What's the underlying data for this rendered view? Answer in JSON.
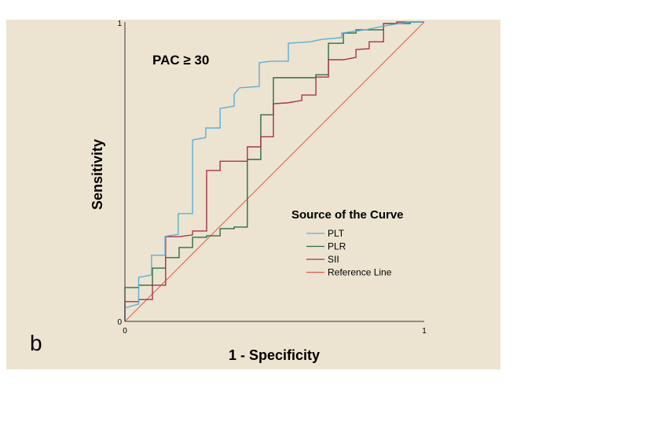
{
  "chart_data": {
    "type": "line",
    "title": "PAC  ≥ 30",
    "panel_label": "b",
    "xlabel": "1 - Specificity",
    "ylabel": "Sensitivity",
    "xlim": [
      0,
      1
    ],
    "ylim": [
      0,
      1
    ],
    "x_ticks": [
      "0",
      "1"
    ],
    "y_ticks": [
      "0",
      "1"
    ],
    "legend": {
      "title": "Source of the Curve",
      "placement": "center-right"
    },
    "series": [
      {
        "name": "PLT",
        "color": "#5BAFD8",
        "points": [
          [
            0,
            0
          ],
          [
            0,
            0.045
          ],
          [
            0.046,
            0.058
          ],
          [
            0.046,
            0.147
          ],
          [
            0.089,
            0.155
          ],
          [
            0.089,
            0.221
          ],
          [
            0.134,
            0.221
          ],
          [
            0.134,
            0.284
          ],
          [
            0.178,
            0.291
          ],
          [
            0.178,
            0.36
          ],
          [
            0.226,
            0.36
          ],
          [
            0.226,
            0.606
          ],
          [
            0.27,
            0.614
          ],
          [
            0.27,
            0.646
          ],
          [
            0.318,
            0.646
          ],
          [
            0.318,
            0.711
          ],
          [
            0.365,
            0.719
          ],
          [
            0.365,
            0.759
          ],
          [
            0.383,
            0.78
          ],
          [
            0.449,
            0.785
          ],
          [
            0.449,
            0.864
          ],
          [
            0.488,
            0.869
          ],
          [
            0.546,
            0.869
          ],
          [
            0.546,
            0.929
          ],
          [
            0.619,
            0.934
          ],
          [
            0.659,
            0.942
          ],
          [
            0.724,
            0.948
          ],
          [
            0.724,
            0.963
          ],
          [
            0.803,
            0.974
          ],
          [
            0.869,
            0.987
          ],
          [
            0.948,
            1
          ],
          [
            1,
            1
          ]
        ]
      },
      {
        "name": "PLR",
        "color": "#2E6B4A",
        "points": [
          [
            0,
            0
          ],
          [
            0,
            0.113
          ],
          [
            0.046,
            0.113
          ],
          [
            0.046,
            0.121
          ],
          [
            0.092,
            0.121
          ],
          [
            0.092,
            0.178
          ],
          [
            0.136,
            0.178
          ],
          [
            0.136,
            0.213
          ],
          [
            0.181,
            0.213
          ],
          [
            0.181,
            0.247
          ],
          [
            0.226,
            0.247
          ],
          [
            0.226,
            0.281
          ],
          [
            0.273,
            0.281
          ],
          [
            0.273,
            0.286
          ],
          [
            0.318,
            0.286
          ],
          [
            0.318,
            0.31
          ],
          [
            0.365,
            0.31
          ],
          [
            0.365,
            0.315
          ],
          [
            0.409,
            0.315
          ],
          [
            0.409,
            0.541
          ],
          [
            0.454,
            0.541
          ],
          [
            0.454,
            0.69
          ],
          [
            0.496,
            0.69
          ],
          [
            0.496,
            0.814
          ],
          [
            0.638,
            0.814
          ],
          [
            0.638,
            0.824
          ],
          [
            0.68,
            0.824
          ],
          [
            0.68,
            0.929
          ],
          [
            0.73,
            0.929
          ],
          [
            0.73,
            0.963
          ],
          [
            0.772,
            0.963
          ],
          [
            0.772,
            0.974
          ],
          [
            0.864,
            0.974
          ],
          [
            0.864,
            0.995
          ],
          [
            0.953,
            0.995
          ],
          [
            0.953,
            1
          ],
          [
            1,
            1
          ]
        ]
      },
      {
        "name": "SII",
        "color": "#A83250",
        "points": [
          [
            0,
            0
          ],
          [
            0,
            0.066
          ],
          [
            0.046,
            0.066
          ],
          [
            0.046,
            0.073
          ],
          [
            0.092,
            0.073
          ],
          [
            0.092,
            0.121
          ],
          [
            0.136,
            0.121
          ],
          [
            0.136,
            0.283
          ],
          [
            0.181,
            0.283
          ],
          [
            0.226,
            0.289
          ],
          [
            0.226,
            0.302
          ],
          [
            0.273,
            0.302
          ],
          [
            0.273,
            0.504
          ],
          [
            0.318,
            0.504
          ],
          [
            0.318,
            0.535
          ],
          [
            0.409,
            0.535
          ],
          [
            0.409,
            0.583
          ],
          [
            0.454,
            0.583
          ],
          [
            0.454,
            0.617
          ],
          [
            0.496,
            0.617
          ],
          [
            0.496,
            0.727
          ],
          [
            0.543,
            0.73
          ],
          [
            0.591,
            0.738
          ],
          [
            0.591,
            0.756
          ],
          [
            0.638,
            0.756
          ],
          [
            0.638,
            0.816
          ],
          [
            0.68,
            0.816
          ],
          [
            0.68,
            0.874
          ],
          [
            0.73,
            0.874
          ],
          [
            0.772,
            0.882
          ],
          [
            0.772,
            0.908
          ],
          [
            0.816,
            0.911
          ],
          [
            0.816,
            0.934
          ],
          [
            0.864,
            0.934
          ],
          [
            0.864,
            0.995
          ],
          [
            0.908,
            0.995
          ],
          [
            0.908,
            1
          ],
          [
            1,
            1
          ]
        ]
      },
      {
        "name": "Reference Line",
        "color": "#E8594A",
        "points": [
          [
            0,
            0
          ],
          [
            1,
            1
          ]
        ]
      }
    ]
  }
}
